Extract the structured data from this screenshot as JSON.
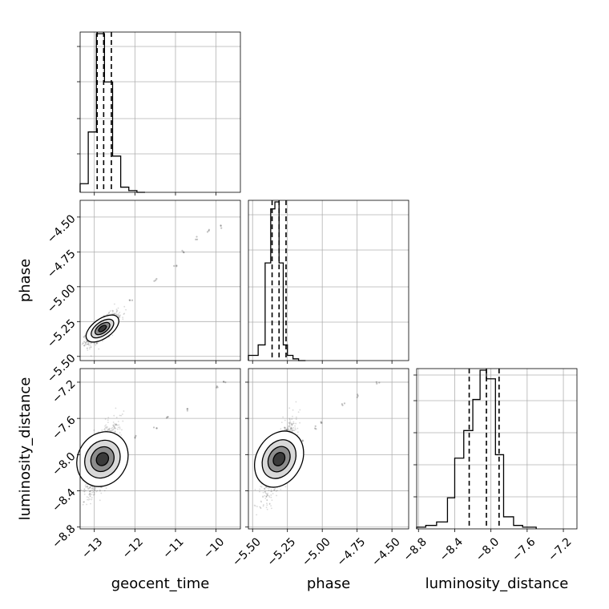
{
  "chart_data": {
    "type": "corner",
    "parameters": [
      "geocent_time",
      "phase",
      "luminosity_distance"
    ],
    "axis_labels": {
      "x": [
        "geocent_time",
        "phase",
        "luminosity_distance"
      ],
      "y": [
        "",
        "phase",
        "luminosity_distance"
      ]
    },
    "grid": true,
    "colors": {
      "contour": "#000000",
      "samples": "#333333",
      "quantile_line": "#000000"
    },
    "ranges": {
      "geocent_time": [
        -13.35,
        -9.4
      ],
      "phase": [
        -5.53,
        -4.38
      ],
      "luminosity_distance": [
        -8.82,
        -7.05
      ]
    },
    "ticks": {
      "geocent_time": [
        -13,
        -12,
        -11,
        -10
      ],
      "geocent_time_labels": [
        "−13",
        "−12",
        "−11",
        "−10"
      ],
      "phase_x": [
        -5.5,
        -5.25,
        -5.0,
        -4.75,
        -4.5
      ],
      "phase_x_labels": [
        "−5.50",
        "−5.25",
        "−5.00",
        "−4.75",
        "−4.50"
      ],
      "phase_y": [
        -5.5,
        -5.25,
        -5.0,
        -4.75,
        -4.5
      ],
      "phase_y_labels": [
        "−5.50",
        "−5.25",
        "−5.00",
        "−4.75",
        "−4.50"
      ],
      "luminosity_distance": [
        -8.8,
        -8.4,
        -8.0,
        -7.6,
        -7.2
      ],
      "luminosity_distance_labels": [
        "−8.8",
        "−8.4",
        "−8.0",
        "−7.6",
        "−7.2"
      ]
    },
    "histograms": {
      "geocent_time": {
        "bin_edges": [
          -13.35,
          -13.15,
          -12.95,
          -12.75,
          -12.55,
          -12.35,
          -12.15,
          -11.95,
          -11.75
        ],
        "counts": [
          0.05,
          0.35,
          0.92,
          0.64,
          0.21,
          0.03,
          0.01,
          0.0
        ],
        "quantiles": [
          -12.93,
          -12.77,
          -12.58
        ]
      },
      "phase": {
        "bin_edges": [
          -5.53,
          -5.46,
          -5.41,
          -5.37,
          -5.34,
          -5.31,
          -5.28,
          -5.25,
          -5.21,
          -5.17,
          -5.12
        ],
        "counts": [
          0.03,
          0.09,
          0.56,
          0.87,
          0.91,
          0.56,
          0.09,
          0.03,
          0.01,
          0.0
        ],
        "quantiles": [
          -5.36,
          -5.31,
          -5.26
        ]
      },
      "luminosity_distance": {
        "bin_edges": [
          -8.82,
          -8.72,
          -8.6,
          -8.48,
          -8.4,
          -8.3,
          -8.2,
          -8.12,
          -8.05,
          -7.95,
          -7.86,
          -7.75,
          -7.65,
          -7.5
        ],
        "counts": [
          0.01,
          0.02,
          0.04,
          0.18,
          0.41,
          0.57,
          0.75,
          0.92,
          0.87,
          0.43,
          0.07,
          0.02,
          0.01
        ],
        "quantiles": [
          -8.24,
          -8.05,
          -7.91
        ]
      }
    },
    "scatter_2d": {
      "phase_vs_geocent_time": {
        "center": [
          -12.8,
          -5.3
        ],
        "spread": [
          0.18,
          0.05
        ],
        "correlation": 0.75,
        "tail": [
          [
            -12.1,
            -5.1
          ],
          [
            -11.5,
            -4.95
          ],
          [
            -11.0,
            -4.85
          ],
          [
            -10.2,
            -4.6
          ],
          [
            -9.9,
            -4.57
          ],
          [
            -10.5,
            -4.65
          ],
          [
            -10.8,
            -4.75
          ]
        ]
      },
      "luminosity_distance_vs_geocent_time": {
        "center": [
          -12.8,
          -8.05
        ],
        "spread": [
          0.18,
          0.18
        ],
        "correlation": 0.7,
        "tail": [
          [
            -12.0,
            -7.8
          ],
          [
            -11.2,
            -7.6
          ],
          [
            -10.7,
            -7.5
          ],
          [
            -10.0,
            -7.25
          ],
          [
            -9.8,
            -7.2
          ],
          [
            -11.5,
            -7.7
          ]
        ]
      },
      "luminosity_distance_vs_phase": {
        "center": [
          -5.31,
          -8.05
        ],
        "spread": [
          0.05,
          0.18
        ],
        "correlation": 0.75,
        "tail": [
          [
            -5.15,
            -7.85
          ],
          [
            -5.0,
            -7.65
          ],
          [
            -4.85,
            -7.45
          ],
          [
            -4.6,
            -7.2
          ],
          [
            -4.75,
            -7.35
          ],
          [
            -5.05,
            -7.7
          ]
        ]
      }
    }
  }
}
